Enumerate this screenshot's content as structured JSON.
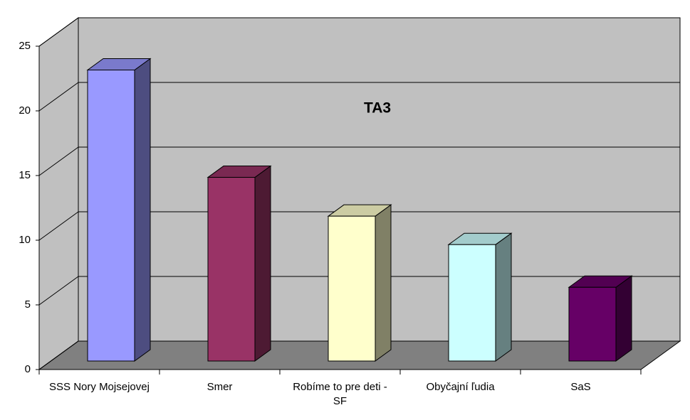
{
  "chart_data": {
    "type": "bar3d",
    "title": "TA3",
    "categories": [
      "SSS Nory Mojsejovej",
      "Smer",
      "Robíme to pre deti - SF",
      "Obyčajní ľudia",
      "SaS"
    ],
    "values": [
      22.5,
      14.2,
      11.2,
      9,
      5.7
    ],
    "colors": [
      "#9999ff",
      "#993366",
      "#ffffcc",
      "#ccffff",
      "#660066"
    ],
    "ylim": [
      0,
      25
    ],
    "yticks": [
      0,
      5,
      10,
      15,
      20,
      25
    ],
    "grid": true
  }
}
